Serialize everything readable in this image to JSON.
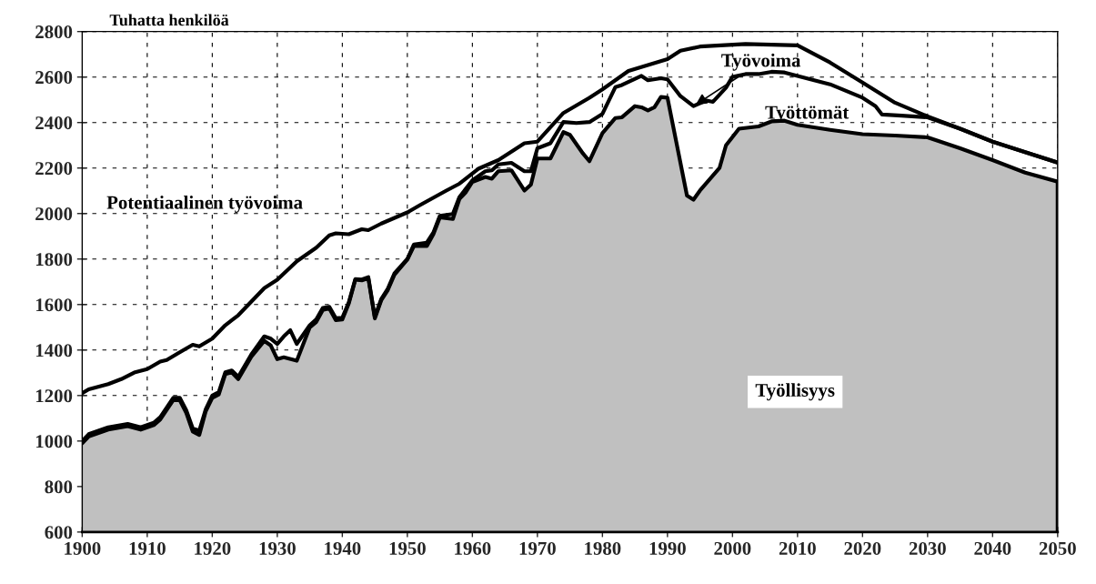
{
  "chart_data": {
    "type": "line",
    "ylabel": "Tuhatta henkilöä",
    "annotations": [
      "Työttömät"
    ],
    "xlim": [
      1900,
      2050
    ],
    "xticks": [
      1900,
      1910,
      1920,
      1930,
      1940,
      1950,
      1960,
      1970,
      1980,
      1990,
      2000,
      2010,
      2020,
      2030,
      2040,
      2050
    ],
    "ylim": [
      600,
      2800
    ],
    "yticks": [
      600,
      800,
      1000,
      1200,
      1400,
      1600,
      1800,
      2000,
      2200,
      2400,
      2600,
      2800
    ],
    "grid": true,
    "legend": false,
    "line_style": "solid",
    "series": [
      {
        "name": "Työllisyys",
        "type": "area",
        "color": "#c0c0c0",
        "x": [
          1900,
          1901,
          1904,
          1907,
          1909,
          1911,
          1912,
          1914,
          1915,
          1916,
          1917,
          1918,
          1919,
          1920,
          1921,
          1922,
          1923,
          1924,
          1926,
          1928,
          1929,
          1930,
          1931,
          1933,
          1935,
          1936,
          1937,
          1938,
          1939,
          1940,
          1941,
          1942,
          1943,
          1944,
          1945,
          1946,
          1947,
          1948,
          1950,
          1951,
          1953,
          1954,
          1955,
          1957,
          1958,
          1959,
          1960,
          1962,
          1963,
          1964,
          1966,
          1968,
          1969,
          1970,
          1972,
          1974,
          1975,
          1977,
          1978,
          1980,
          1982,
          1983,
          1985,
          1986,
          1987,
          1988,
          1989,
          1990,
          1993,
          1994,
          1995,
          1996,
          1998,
          1999,
          2001,
          2004,
          2006,
          2008,
          2010,
          2015,
          2020,
          2025,
          2030,
          2035,
          2040,
          2045,
          2050
        ],
        "values": [
          990,
          1020,
          1050,
          1065,
          1050,
          1070,
          1095,
          1180,
          1180,
          1124,
          1042,
          1027,
          1131,
          1190,
          1205,
          1294,
          1302,
          1272,
          1370,
          1440,
          1420,
          1360,
          1368,
          1353,
          1500,
          1524,
          1576,
          1583,
          1531,
          1534,
          1605,
          1709,
          1706,
          1716,
          1539,
          1620,
          1664,
          1730,
          1798,
          1857,
          1857,
          1909,
          1983,
          1976,
          2064,
          2094,
          2139,
          2161,
          2153,
          2186,
          2190,
          2101,
          2127,
          2242,
          2242,
          2358,
          2346,
          2264,
          2230,
          2353,
          2420,
          2423,
          2472,
          2467,
          2453,
          2467,
          2512,
          2509,
          2079,
          2061,
          2101,
          2134,
          2200,
          2300,
          2373,
          2383,
          2405,
          2408,
          2390,
          2368,
          2349,
          2343,
          2335,
          2287,
          2235,
          2180,
          2140
        ]
      },
      {
        "name": "Työvoima",
        "type": "line",
        "color": "#000000",
        "x": [
          1900,
          1901,
          1904,
          1907,
          1909,
          1911,
          1912,
          1914,
          1915,
          1916,
          1917,
          1918,
          1919,
          1920,
          1921,
          1922,
          1923,
          1924,
          1926,
          1928,
          1929,
          1930,
          1931,
          1932,
          1933,
          1935,
          1936,
          1937,
          1938,
          1939,
          1940,
          1941,
          1942,
          1943,
          1944,
          1945,
          1946,
          1947,
          1948,
          1950,
          1951,
          1953,
          1954,
          1955,
          1957,
          1958,
          1960,
          1962,
          1963,
          1964,
          1966,
          1968,
          1969,
          1970,
          1972,
          1974,
          1976,
          1978,
          1980,
          1982,
          1983,
          1986,
          1987,
          1989,
          1990,
          1992,
          1994,
          1996,
          1997,
          1999,
          2000,
          2002,
          2004,
          2006,
          2008,
          2010,
          2015,
          2020,
          2022,
          2023,
          2026,
          2030,
          2035,
          2040,
          2045,
          2050
        ],
        "values": [
          1000,
          1030,
          1060,
          1075,
          1060,
          1080,
          1105,
          1190,
          1190,
          1135,
          1055,
          1045,
          1140,
          1200,
          1215,
          1302,
          1310,
          1282,
          1380,
          1460,
          1450,
          1427,
          1460,
          1487,
          1427,
          1509,
          1535,
          1585,
          1590,
          1540,
          1542,
          1610,
          1712,
          1710,
          1720,
          1545,
          1625,
          1670,
          1736,
          1800,
          1864,
          1872,
          1916,
          1990,
          1998,
          2072,
          2146,
          2186,
          2190,
          2216,
          2223,
          2186,
          2186,
          2287,
          2309,
          2402,
          2398,
          2402,
          2438,
          2556,
          2565,
          2605,
          2586,
          2595,
          2590,
          2516,
          2472,
          2497,
          2491,
          2553,
          2601,
          2613,
          2613,
          2623,
          2620,
          2605,
          2568,
          2509,
          2472,
          2435,
          2430,
          2423,
          2373,
          2316,
          2270,
          2224
        ]
      },
      {
        "name": "Potentiaalinen työvoima",
        "color": "#000000",
        "x": [
          1900,
          1901,
          1904,
          1906,
          1908,
          1910,
          1912,
          1913,
          1915,
          1917,
          1918,
          1920,
          1922,
          1924,
          1928,
          1930,
          1933,
          1936,
          1938,
          1939,
          1941,
          1943,
          1944,
          1946,
          1950,
          1952,
          1956,
          1958,
          1961,
          1964,
          1968,
          1970,
          1974,
          1978,
          1980,
          1984,
          1990,
          1992,
          1995,
          2002,
          2010,
          2015,
          2020,
          2025,
          2030,
          2035,
          2040,
          2045,
          2050
        ],
        "values": [
          1210,
          1227,
          1250,
          1272,
          1301,
          1316,
          1349,
          1356,
          1390,
          1423,
          1416,
          1450,
          1509,
          1553,
          1672,
          1709,
          1790,
          1850,
          1904,
          1913,
          1909,
          1931,
          1927,
          1956,
          2005,
          2038,
          2101,
          2131,
          2198,
          2235,
          2309,
          2316,
          2442,
          2509,
          2546,
          2627,
          2679,
          2716,
          2734,
          2745,
          2739,
          2664,
          2576,
          2487,
          2427,
          2373,
          2316,
          2270,
          2224
        ]
      }
    ]
  }
}
